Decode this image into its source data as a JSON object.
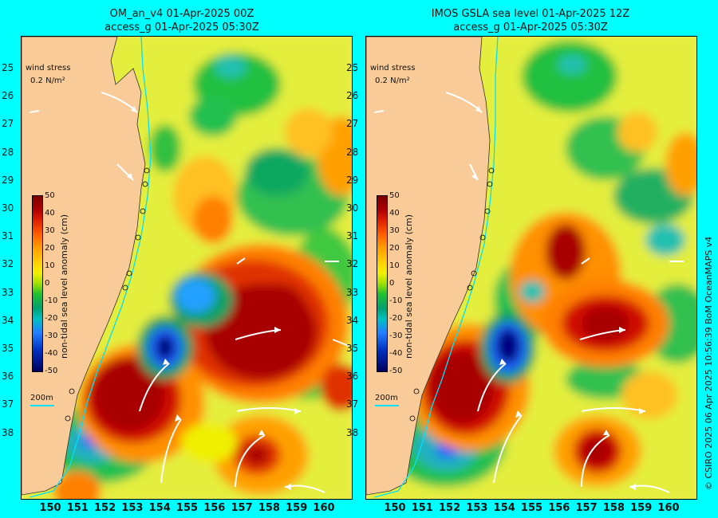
{
  "titles": {
    "left_line1": "OM_an_v4  01-Apr-2025 00Z",
    "left_line2": "access_g 01-Apr-2025 05:30Z",
    "right_line1": "IMOS GSLA sea level  01-Apr-2025 12Z",
    "right_line2": "access_g 01-Apr-2025 05:30Z"
  },
  "legend": {
    "wind_stress_label": "wind stress",
    "wind_stress_scale": "0.2 N/m²",
    "depth_contour_label": "200m",
    "colorbar_title": "non-tidal sea level anomaly (cm)",
    "colorbar_ticks": [
      "50",
      "40",
      "30",
      "20",
      "10",
      "0",
      "-10",
      "-20",
      "-30",
      "-40",
      "-50"
    ]
  },
  "axes": {
    "lat_ticks": [
      "25",
      "26",
      "27",
      "28",
      "29",
      "30",
      "31",
      "32",
      "33",
      "34",
      "35",
      "36",
      "37",
      "38"
    ],
    "lon_ticks": [
      "150",
      "151",
      "152",
      "153",
      "154",
      "155",
      "156",
      "157",
      "158",
      "159",
      "160"
    ]
  },
  "credit": "© CSIRO 2025   06 Apr 2025 10:56:39 BoM OceanMAPS v4",
  "colors": {
    "background": "#00ffff",
    "land": "#f9cb98",
    "high_anomaly": "#a80000",
    "low_anomaly": "#000080",
    "arrows": "#ffffff"
  }
}
